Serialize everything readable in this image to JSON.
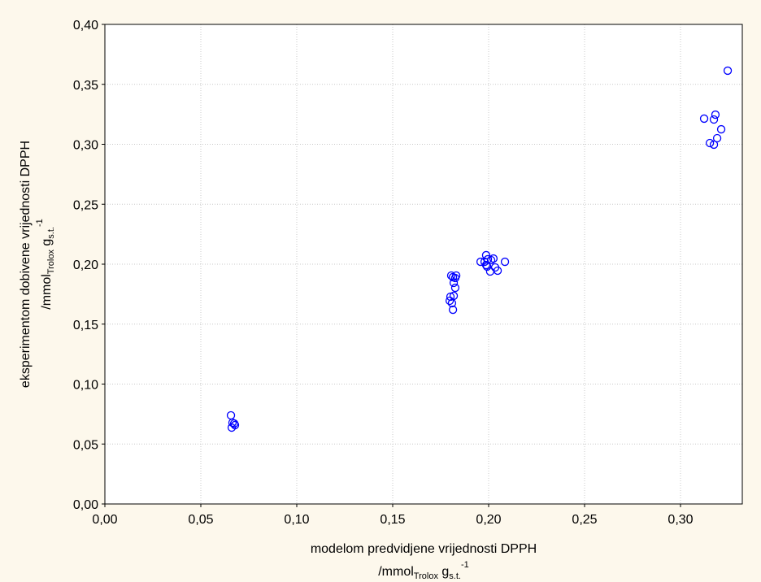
{
  "chart_data": {
    "type": "scatter",
    "x_label": "modelom predvidjene vrijednosti DPPH",
    "x_unit": [
      "/mmol",
      "Trolox",
      " g",
      "s.t.",
      "-1"
    ],
    "y_label": "eksperimentom dobivene vrijednosti DPPH",
    "y_unit": [
      "/mmol",
      "Trolox",
      " g",
      "s.t.",
      "-1"
    ],
    "color": "#0000ff",
    "grid": true,
    "xlim": [
      0,
      0.3322
    ],
    "ylim": [
      0,
      0.4
    ],
    "xticks": [
      {
        "value": 0,
        "label": "0,00"
      },
      {
        "value": 0.05,
        "label": "0,05"
      },
      {
        "value": 0.1,
        "label": "0,10"
      },
      {
        "value": 0.15,
        "label": "0,15"
      },
      {
        "value": 0.2,
        "label": "0,20"
      },
      {
        "value": 0.25,
        "label": "0,25"
      },
      {
        "value": 0.3,
        "label": "0,30"
      }
    ],
    "yticks": [
      {
        "value": 0,
        "label": "0,00"
      },
      {
        "value": 0.05,
        "label": "0,05"
      },
      {
        "value": 0.1,
        "label": "0,10"
      },
      {
        "value": 0.15,
        "label": "0,15"
      },
      {
        "value": 0.2,
        "label": "0,20"
      },
      {
        "value": 0.25,
        "label": "0,25"
      },
      {
        "value": 0.3,
        "label": "0,30"
      },
      {
        "value": 0.35,
        "label": "0,35"
      },
      {
        "value": 0.4,
        "label": "0,40"
      }
    ],
    "x": [
      0.0657,
      0.0661,
      0.0674,
      0.0678,
      0.0665,
      0.1805,
      0.1797,
      0.1809,
      0.1814,
      0.1818,
      0.1826,
      0.1831,
      0.1826,
      0.1814,
      0.1818,
      0.1801,
      0.1958,
      0.1987,
      0.1996,
      0.1979,
      0.1992,
      0.2008,
      0.2025,
      0.2034,
      0.2047,
      0.2085,
      0.1987,
      0.2013,
      0.3123,
      0.3182,
      0.3174,
      0.3212,
      0.3191,
      0.3153,
      0.3174,
      0.3246
    ],
    "y": [
      0.0739,
      0.0637,
      0.0671,
      0.0658,
      0.0678,
      0.1905,
      0.1695,
      0.1675,
      0.162,
      0.1736,
      0.1803,
      0.1905,
      0.1885,
      0.1892,
      0.1844,
      0.1729,
      0.202,
      0.2075,
      0.2041,
      0.202,
      0.198,
      0.1939,
      0.2047,
      0.1973,
      0.1946,
      0.202,
      0.1993,
      0.2034,
      0.3214,
      0.3247,
      0.3207,
      0.3125,
      0.3051,
      0.301,
      0.2997,
      0.3614
    ]
  }
}
